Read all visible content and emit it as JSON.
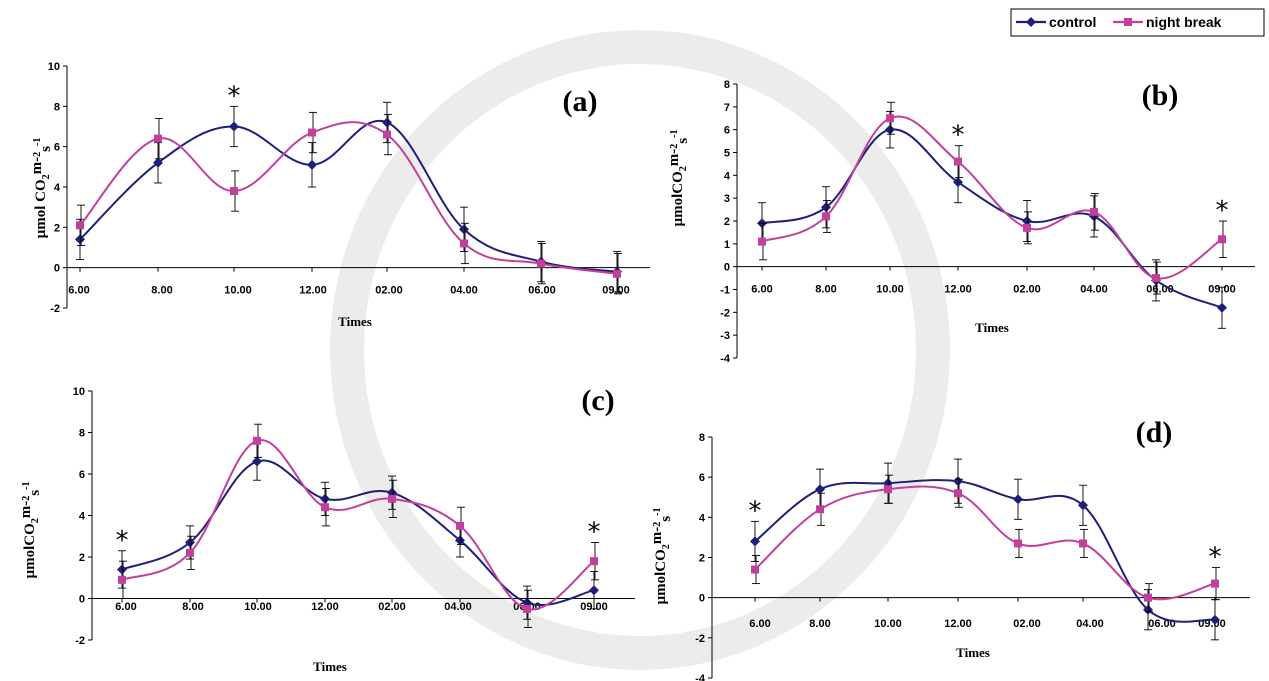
{
  "legend": {
    "items": [
      {
        "name": "control",
        "color": "#1f1f7a"
      },
      {
        "name": "night break",
        "color": "#c2409c"
      }
    ]
  },
  "chart_data": [
    {
      "panel": "(a)",
      "type": "line",
      "ylabel": "µmol CO₂m-²s-¹",
      "ylabel_parts": [
        "µmol CO",
        "2",
        "m-",
        "2",
        "s",
        "-1"
      ],
      "xlabel": "Times",
      "categories": [
        "6.00",
        "8.00",
        "10.00",
        "12.00",
        "02.00",
        "04.00",
        "06.00",
        "09.00"
      ],
      "ylim": [
        -2,
        10
      ],
      "yticks": [
        -2,
        0,
        2,
        4,
        6,
        8,
        10
      ],
      "series": [
        {
          "name": "control",
          "values": [
            1.4,
            5.2,
            7.0,
            5.1,
            7.2,
            1.9,
            0.3,
            -0.2
          ],
          "errors": [
            1.0,
            1.0,
            1.0,
            1.1,
            1.0,
            1.1,
            1.0,
            1.0
          ]
        },
        {
          "name": "night break",
          "values": [
            2.1,
            6.4,
            3.8,
            6.7,
            6.6,
            1.2,
            0.2,
            -0.3
          ],
          "errors": [
            1.0,
            1.0,
            1.0,
            1.0,
            1.0,
            1.0,
            1.0,
            1.0
          ]
        }
      ],
      "significance": [
        2
      ]
    },
    {
      "panel": "(b)",
      "type": "line",
      "ylabel": "µmolCO₂m-²s-¹",
      "ylabel_parts": [
        "µmolCO",
        "2",
        "m-",
        "2",
        "s",
        "-1"
      ],
      "xlabel": "Times",
      "categories": [
        "6.00",
        "8.00",
        "10.00",
        "12.00",
        "02.00",
        "04.00",
        "06.00",
        "09.00"
      ],
      "ylim": [
        -4,
        8
      ],
      "yticks": [
        -4,
        -3,
        -2,
        -1,
        0,
        1,
        2,
        3,
        4,
        5,
        6,
        7,
        8
      ],
      "series": [
        {
          "name": "control",
          "values": [
            1.9,
            2.6,
            6.0,
            3.7,
            2.0,
            2.2,
            -0.6,
            -1.8
          ],
          "errors": [
            0.9,
            0.9,
            0.8,
            0.9,
            0.9,
            0.9,
            0.9,
            0.9
          ]
        },
        {
          "name": "night break",
          "values": [
            1.1,
            2.2,
            6.5,
            4.6,
            1.7,
            2.4,
            -0.5,
            1.2
          ],
          "errors": [
            0.8,
            0.7,
            0.7,
            0.7,
            0.7,
            0.8,
            0.7,
            0.8
          ]
        }
      ],
      "significance": [
        3,
        7
      ]
    },
    {
      "panel": "(c)",
      "type": "line",
      "ylabel": "µmolCO₂m-²s-¹",
      "ylabel_parts": [
        "µmolCO",
        "2",
        "m-",
        "2",
        "s",
        "-1"
      ],
      "xlabel": "Times",
      "categories": [
        "6.00",
        "8.00",
        "10.00",
        "12.00",
        "02.00",
        "04.00",
        "06.00",
        "09.00"
      ],
      "ylim": [
        -2,
        10
      ],
      "yticks": [
        -2,
        0,
        2,
        4,
        6,
        8,
        10
      ],
      "series": [
        {
          "name": "control",
          "values": [
            1.4,
            2.7,
            6.6,
            4.8,
            5.1,
            2.8,
            -0.2,
            0.4
          ],
          "errors": [
            0.9,
            0.8,
            0.9,
            0.8,
            0.8,
            0.8,
            0.8,
            0.9
          ]
        },
        {
          "name": "night break",
          "values": [
            0.9,
            2.2,
            7.6,
            4.4,
            4.8,
            3.5,
            -0.5,
            1.8
          ],
          "errors": [
            0.9,
            0.8,
            0.8,
            0.9,
            0.9,
            0.9,
            0.9,
            0.9
          ]
        }
      ],
      "significance": [
        0,
        7
      ]
    },
    {
      "panel": "(d)",
      "type": "line",
      "ylabel": "µmolCO₂m-²s-¹",
      "ylabel_parts": [
        "µmolCO",
        "2",
        "m-",
        "2",
        "s",
        "-1"
      ],
      "xlabel": "Times",
      "categories": [
        "6.00",
        "8.00",
        "10.00",
        "12.00",
        "02.00",
        "04.00",
        "06.00",
        "09.00"
      ],
      "ylim": [
        -4,
        8
      ],
      "yticks": [
        -4,
        -2,
        0,
        2,
        4,
        6,
        8
      ],
      "series": [
        {
          "name": "control",
          "values": [
            2.8,
            5.4,
            5.7,
            5.8,
            4.9,
            4.6,
            -0.6,
            -1.1
          ],
          "errors": [
            1.0,
            1.0,
            1.0,
            1.1,
            1.0,
            1.0,
            1.0,
            1.0
          ]
        },
        {
          "name": "night break",
          "values": [
            1.4,
            4.4,
            5.4,
            5.2,
            2.7,
            2.7,
            0.0,
            0.7
          ],
          "errors": [
            0.7,
            0.8,
            0.7,
            0.7,
            0.7,
            0.7,
            0.7,
            0.8
          ]
        }
      ],
      "significance": [
        0,
        7
      ]
    }
  ]
}
